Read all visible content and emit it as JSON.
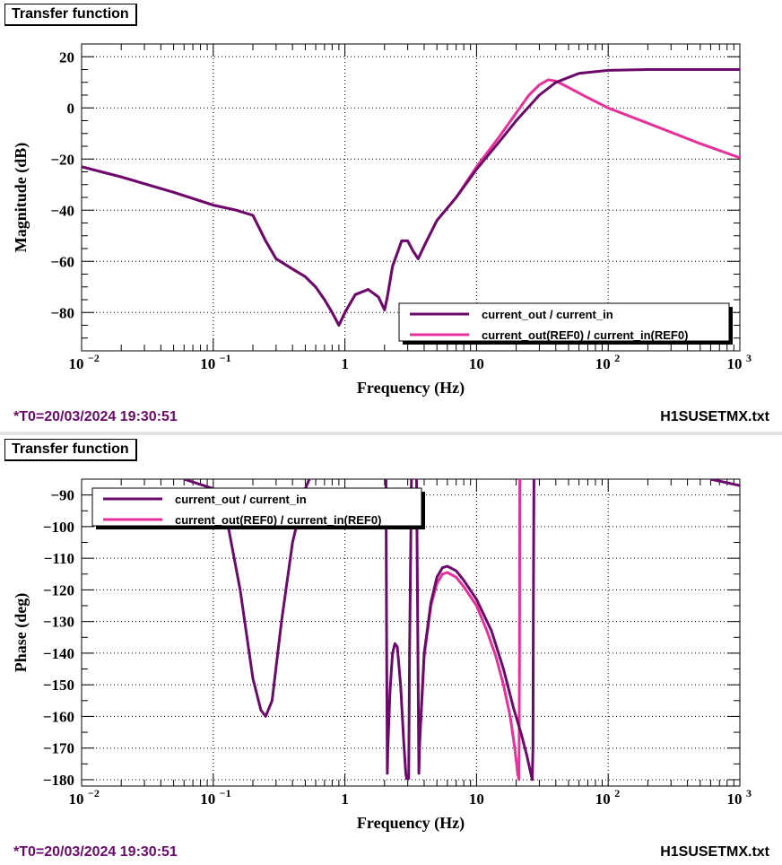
{
  "panels": [
    {
      "tab_label": "Transfer function",
      "footer_left": "*T0=20/03/2024 19:30:51",
      "footer_right": "H1SUSETMX.txt"
    },
    {
      "tab_label": "Transfer function",
      "footer_left": "*T0=20/03/2024 19:30:51",
      "footer_right": "H1SUSETMX.txt"
    }
  ],
  "colors": {
    "series1": "#6b0a6b",
    "series2": "#e8309a"
  },
  "chart_data": [
    {
      "type": "line",
      "xscale": "log",
      "xlim": [
        0.01,
        1000
      ],
      "ylim": [
        -95,
        25
      ],
      "xlabel": "Frequency (Hz)",
      "ylabel": "Magnitude (dB)",
      "x_ticks": [
        "10^-2",
        "10^-1",
        "1",
        "10",
        "10^2",
        "10^3"
      ],
      "y_ticks": [
        "20",
        "0",
        "−20",
        "−40",
        "−60",
        "−80"
      ],
      "grid": true,
      "legend_position": "bottom-right",
      "series": [
        {
          "name": "current_out / current_in",
          "x": [
            0.01,
            0.02,
            0.05,
            0.1,
            0.15,
            0.2,
            0.25,
            0.3,
            0.4,
            0.5,
            0.6,
            0.7,
            0.8,
            0.9,
            1.0,
            1.2,
            1.5,
            1.8,
            2.0,
            2.1,
            2.3,
            2.7,
            3.0,
            3.3,
            3.6,
            4,
            5,
            7,
            10,
            15,
            20,
            30,
            40,
            60,
            100,
            200,
            500,
            1000
          ],
          "y": [
            -23,
            -27,
            -33,
            -38,
            -40,
            -42,
            -52,
            -59,
            -63,
            -66,
            -70,
            -75,
            -80,
            -85,
            -80,
            -73,
            -71,
            -74,
            -79,
            -74,
            -62,
            -52,
            -52,
            -56,
            -59,
            -54,
            -44,
            -35,
            -24,
            -13,
            -5,
            5,
            10,
            13.5,
            14.7,
            15,
            15,
            15
          ]
        },
        {
          "name": "current_out(REF0) / current_in(REF0)",
          "x": [
            0.01,
            0.02,
            0.05,
            0.1,
            0.15,
            0.2,
            0.25,
            0.3,
            0.4,
            0.5,
            0.6,
            0.7,
            0.8,
            0.9,
            1.0,
            1.2,
            1.5,
            1.8,
            2.0,
            2.1,
            2.3,
            2.7,
            3.0,
            3.3,
            3.6,
            4,
            5,
            7,
            10,
            15,
            20,
            25,
            30,
            35,
            40,
            50,
            70,
            100,
            200,
            500,
            1000
          ],
          "y": [
            -23,
            -27,
            -33,
            -38,
            -40,
            -42,
            -52,
            -59,
            -63,
            -66,
            -70,
            -75,
            -80,
            -85,
            -80,
            -73,
            -71,
            -74,
            -79,
            -74,
            -62,
            -52,
            -52,
            -56,
            -59,
            -54,
            -44,
            -35,
            -23,
            -11,
            -2,
            5,
            9,
            11,
            10.5,
            8,
            4,
            0,
            -6,
            -14,
            -19.5
          ]
        }
      ]
    },
    {
      "type": "line",
      "xscale": "log",
      "xlim": [
        0.01,
        1000
      ],
      "ylim": [
        -182,
        -85
      ],
      "xlabel": "Frequency (Hz)",
      "ylabel": "Phase (deg)",
      "x_ticks": [
        "10^-2",
        "10^-1",
        "1",
        "10",
        "10^2",
        "10^3"
      ],
      "y_ticks": [
        "−90",
        "−100",
        "−110",
        "−120",
        "−130",
        "−140",
        "−150",
        "−160",
        "−170",
        "−180"
      ],
      "grid": true,
      "legend_position": "top-left",
      "series": [
        {
          "name": "current_out / current_in",
          "x": [
            0.06,
            0.1,
            0.13,
            0.16,
            0.2,
            0.23,
            0.25,
            0.28,
            0.33,
            0.4,
            0.5,
            0.55,
            null,
            2.05,
            2.07,
            2.1,
            2.12,
            2.2,
            2.3,
            2.4,
            2.5,
            2.65,
            2.8,
            2.9,
            2.95,
            null,
            3.05,
            3.1,
            3.2,
            null,
            3.5,
            3.6,
            3.65,
            3.7,
            4,
            4.5,
            5,
            5.5,
            6,
            7,
            8,
            10,
            13,
            16,
            19,
            22,
            24,
            25.5,
            26.5,
            26.8,
            27,
            27.3,
            null,
            600,
            1000
          ],
          "y": [
            -85,
            -88,
            -100,
            -120,
            -148,
            -158,
            -160,
            -155,
            -130,
            -105,
            -88,
            -84,
            null,
            -84,
            -130,
            -178,
            -170,
            -152,
            -140,
            -137,
            -138,
            -150,
            -168,
            -178,
            -180,
            null,
            -180,
            -140,
            -85,
            null,
            -85,
            -150,
            -178,
            -168,
            -140,
            -124,
            -116,
            -113,
            -112.5,
            -114,
            -117,
            -123,
            -133,
            -145,
            -157,
            -166,
            -172,
            -177,
            -180,
            -170,
            -130,
            -85,
            null,
            -85,
            -87
          ]
        },
        {
          "name": "current_out(REF0) / current_in(REF0)",
          "x": [
            3.7,
            4,
            4.5,
            5,
            5.5,
            6,
            7,
            8,
            10,
            12,
            14,
            16,
            18,
            19.5,
            20.5,
            21,
            21.2,
            21.3
          ],
          "y": [
            -168,
            -141,
            -125,
            -118,
            -115,
            -114.5,
            -116,
            -119,
            -125,
            -133,
            -141,
            -150,
            -160,
            -170,
            -178,
            -180,
            -140,
            -85
          ]
        }
      ]
    }
  ]
}
